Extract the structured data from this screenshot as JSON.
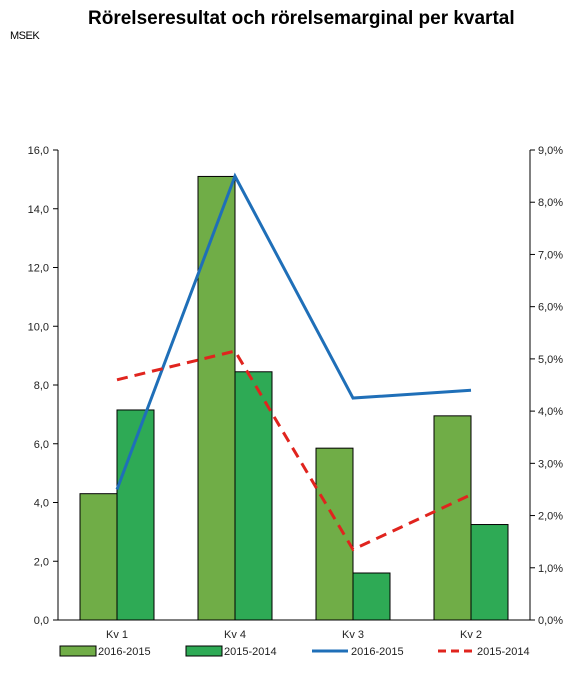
{
  "chart_data": {
    "type": "bar",
    "title": "Rörelseresultat och rörelsemarginal per kvartal",
    "unit_label": "MSEK",
    "categories": [
      "Kv 1",
      "Kv 4",
      "Kv 3",
      "Kv 2"
    ],
    "bar_series": [
      {
        "name": "2016-2015",
        "values": [
          4.3,
          15.1,
          5.85,
          6.95
        ],
        "color": "#70ad47"
      },
      {
        "name": "2015-2014",
        "values": [
          7.15,
          8.45,
          1.6,
          3.25
        ],
        "color": "#2eaa55"
      }
    ],
    "line_series": [
      {
        "name": "2016-2015",
        "values": [
          2.5,
          8.5,
          4.25,
          4.4
        ],
        "color": "#1f6fb8",
        "style": "solid",
        "axis": "right"
      },
      {
        "name": "2015-2014",
        "values": [
          4.6,
          5.15,
          1.35,
          2.4
        ],
        "color": "#e0241e",
        "style": "dashed",
        "axis": "right"
      }
    ],
    "y_left": {
      "ylim": [
        0,
        16
      ],
      "ticks": [
        "0,0",
        "2,0",
        "4,0",
        "6,0",
        "8,0",
        "10,0",
        "12,0",
        "14,0",
        "16,0"
      ]
    },
    "y_right": {
      "ylim": [
        0,
        9
      ],
      "ticks": [
        "0,0%",
        "1,0%",
        "2,0%",
        "3,0%",
        "4,0%",
        "5,0%",
        "6,0%",
        "7,0%",
        "8,0%",
        "9,0%"
      ]
    },
    "grid": false,
    "legend_position": "bottom"
  }
}
